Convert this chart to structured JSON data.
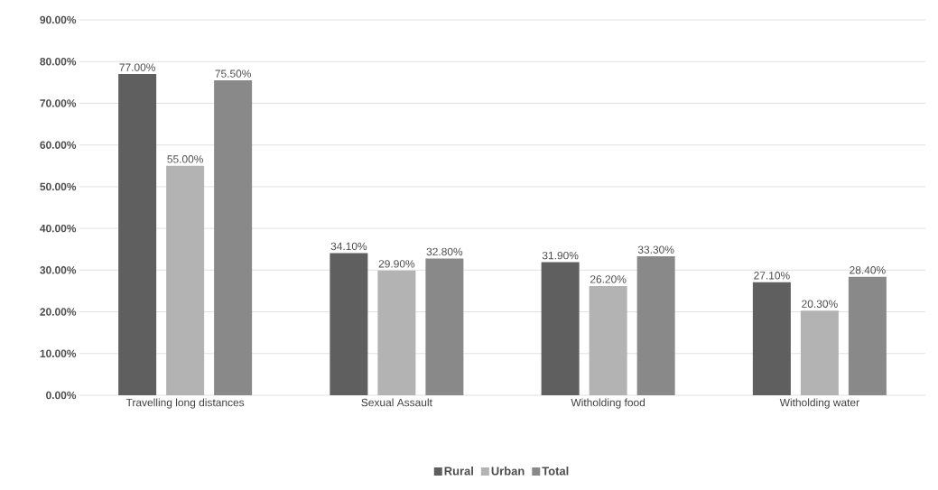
{
  "chart_data": {
    "type": "bar",
    "categories": [
      "Travelling long distances",
      "Sexual Assault",
      "Witholding food",
      "Witholding water"
    ],
    "series": [
      {
        "name": "Rural",
        "color": "#5f5f5f",
        "values": [
          77.0,
          34.1,
          31.9,
          27.1
        ],
        "value_labels": [
          "77.00%",
          "34.10%",
          "31.90%",
          "27.10%"
        ]
      },
      {
        "name": "Urban",
        "color": "#b3b3b3",
        "values": [
          55.0,
          29.9,
          26.2,
          20.3
        ],
        "value_labels": [
          "55.00%",
          "29.90%",
          "26.20%",
          "20.30%"
        ]
      },
      {
        "name": "Total",
        "color": "#898989",
        "values": [
          75.5,
          32.8,
          33.3,
          28.4
        ],
        "value_labels": [
          "75.50%",
          "32.80%",
          "33.30%",
          "28.40%"
        ]
      }
    ],
    "ylim": [
      0,
      90
    ],
    "yticks": [
      {
        "value": 0,
        "label": "0.00%"
      },
      {
        "value": 10,
        "label": "10.00%"
      },
      {
        "value": 20,
        "label": "20.00%"
      },
      {
        "value": 30,
        "label": "30.00%"
      },
      {
        "value": 40,
        "label": "40.00%"
      },
      {
        "value": 50,
        "label": "50.00%"
      },
      {
        "value": 60,
        "label": "60.00%"
      },
      {
        "value": 70,
        "label": "70.00%"
      },
      {
        "value": 80,
        "label": "80.00%"
      },
      {
        "value": 90,
        "label": "90.00%"
      }
    ],
    "grid": "y",
    "legend": "bottom"
  }
}
